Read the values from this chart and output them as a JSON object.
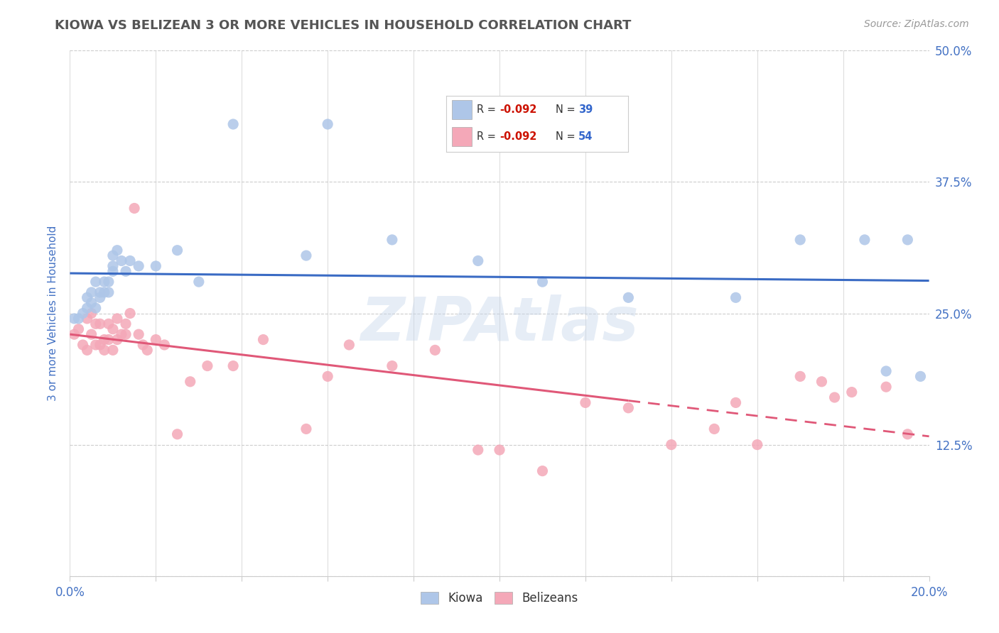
{
  "title": "KIOWA VS BELIZEAN 3 OR MORE VEHICLES IN HOUSEHOLD CORRELATION CHART",
  "source": "Source: ZipAtlas.com",
  "ylabel": "3 or more Vehicles in Household",
  "xlim": [
    0.0,
    0.2
  ],
  "ylim": [
    0.0,
    0.5
  ],
  "xticks": [
    0.0,
    0.02,
    0.04,
    0.06,
    0.08,
    0.1,
    0.12,
    0.14,
    0.16,
    0.18,
    0.2
  ],
  "yticks": [
    0.0,
    0.125,
    0.25,
    0.375,
    0.5
  ],
  "yticklabels_right": [
    "",
    "12.5%",
    "25.0%",
    "37.5%",
    "50.0%"
  ],
  "kiowa_R": -0.092,
  "kiowa_N": 39,
  "belizean_R": -0.092,
  "belizean_N": 54,
  "kiowa_color": "#aec6e8",
  "belizean_color": "#f4a8b8",
  "kiowa_line_color": "#3a6bc4",
  "belizean_line_color": "#e05878",
  "watermark": "ZIPAtlas",
  "background_color": "#ffffff",
  "grid_color": "#cccccc",
  "title_color": "#555555",
  "axis_label_color": "#4472c4",
  "kiowa_x": [
    0.001,
    0.002,
    0.003,
    0.004,
    0.004,
    0.005,
    0.005,
    0.006,
    0.006,
    0.007,
    0.007,
    0.008,
    0.008,
    0.009,
    0.009,
    0.01,
    0.01,
    0.01,
    0.011,
    0.012,
    0.013,
    0.014,
    0.016,
    0.02,
    0.025,
    0.03,
    0.038,
    0.055,
    0.06,
    0.075,
    0.095,
    0.11,
    0.13,
    0.155,
    0.17,
    0.185,
    0.19,
    0.195,
    0.198
  ],
  "kiowa_y": [
    0.245,
    0.245,
    0.25,
    0.265,
    0.255,
    0.27,
    0.26,
    0.28,
    0.255,
    0.27,
    0.265,
    0.28,
    0.27,
    0.27,
    0.28,
    0.29,
    0.295,
    0.305,
    0.31,
    0.3,
    0.29,
    0.3,
    0.295,
    0.295,
    0.31,
    0.28,
    0.43,
    0.305,
    0.43,
    0.32,
    0.3,
    0.28,
    0.265,
    0.265,
    0.32,
    0.32,
    0.195,
    0.32,
    0.19
  ],
  "belizean_x": [
    0.001,
    0.002,
    0.003,
    0.004,
    0.004,
    0.005,
    0.005,
    0.006,
    0.006,
    0.007,
    0.007,
    0.008,
    0.008,
    0.009,
    0.009,
    0.01,
    0.01,
    0.011,
    0.011,
    0.012,
    0.013,
    0.013,
    0.014,
    0.015,
    0.016,
    0.017,
    0.018,
    0.02,
    0.022,
    0.025,
    0.028,
    0.032,
    0.038,
    0.045,
    0.055,
    0.06,
    0.065,
    0.075,
    0.085,
    0.095,
    0.1,
    0.11,
    0.12,
    0.13,
    0.14,
    0.15,
    0.155,
    0.16,
    0.17,
    0.175,
    0.178,
    0.182,
    0.19,
    0.195
  ],
  "belizean_y": [
    0.23,
    0.235,
    0.22,
    0.245,
    0.215,
    0.25,
    0.23,
    0.24,
    0.22,
    0.24,
    0.22,
    0.225,
    0.215,
    0.225,
    0.24,
    0.215,
    0.235,
    0.225,
    0.245,
    0.23,
    0.24,
    0.23,
    0.25,
    0.35,
    0.23,
    0.22,
    0.215,
    0.225,
    0.22,
    0.135,
    0.185,
    0.2,
    0.2,
    0.225,
    0.14,
    0.19,
    0.22,
    0.2,
    0.215,
    0.12,
    0.12,
    0.1,
    0.165,
    0.16,
    0.125,
    0.14,
    0.165,
    0.125,
    0.19,
    0.185,
    0.17,
    0.175,
    0.18,
    0.135
  ]
}
